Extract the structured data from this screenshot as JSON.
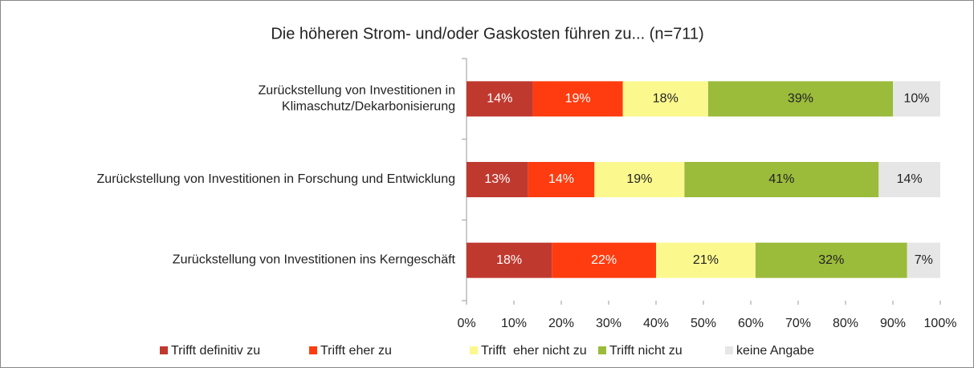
{
  "chart_data": {
    "type": "stacked-barh",
    "title": "Die höheren Strom- und/oder Gaskosten führen zu... (n=711)",
    "categories": [
      [
        "Zurückstellung von Investitionen in",
        "Klimaschutz/Dekarbonisierung"
      ],
      [
        "Zurückstellung von Investitionen in Forschung und Entwicklung"
      ],
      [
        "Zurückstellung von Investitionen ins Kerngeschäft"
      ]
    ],
    "series": [
      {
        "name": "Trifft definitiv zu",
        "color": "#c0392f",
        "values": [
          14,
          13,
          18
        ],
        "value_labels": [
          "14%",
          "13%",
          "18%"
        ]
      },
      {
        "name": "Trifft eher zu",
        "color": "#ff3c10",
        "values": [
          19,
          14,
          22
        ],
        "value_labels": [
          "19%",
          "14%",
          "22%"
        ]
      },
      {
        "name": "Trifft  eher nicht zu",
        "color": "#fbf88e",
        "values": [
          18,
          19,
          21
        ],
        "value_labels": [
          "18%",
          "19%",
          "21%"
        ]
      },
      {
        "name": "Trifft nicht zu",
        "color": "#9bbb3b",
        "values": [
          39,
          41,
          32
        ],
        "value_labels": [
          "39%",
          "41%",
          "32%"
        ]
      },
      {
        "name": "keine Angabe",
        "color": "#e6e6e6",
        "values": [
          10,
          14,
          7
        ],
        "value_labels": [
          "10%",
          "14%",
          "7%"
        ]
      }
    ],
    "xlim": [
      0,
      100
    ],
    "xticks": [
      {
        "value": 0,
        "label": "0%"
      },
      {
        "value": 10,
        "label": "10%"
      },
      {
        "value": 20,
        "label": "20%"
      },
      {
        "value": 30,
        "label": "30%"
      },
      {
        "value": 40,
        "label": "40%"
      },
      {
        "value": 50,
        "label": "50%"
      },
      {
        "value": 60,
        "label": "60%"
      },
      {
        "value": 70,
        "label": "70%"
      },
      {
        "value": 80,
        "label": "80%"
      },
      {
        "value": 90,
        "label": "90%"
      },
      {
        "value": 100,
        "label": "100%"
      }
    ],
    "legend": "bottom"
  }
}
